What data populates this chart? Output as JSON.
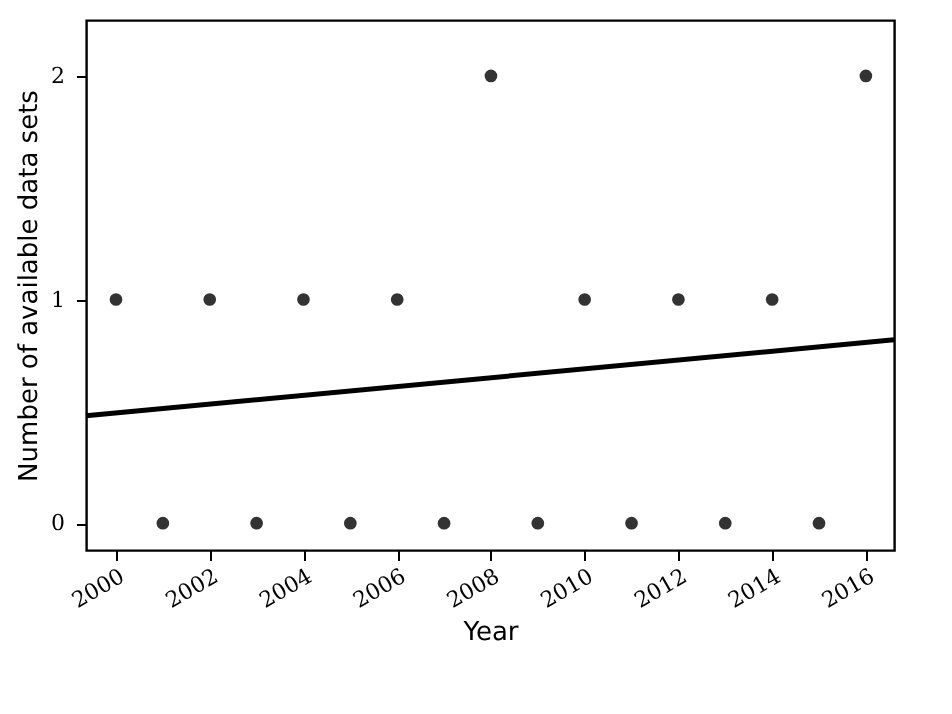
{
  "chart_data": {
    "type": "scatter",
    "xlabel": "Year",
    "ylabel": "Number of available data sets",
    "x": [
      2000,
      2001,
      2002,
      2003,
      2004,
      2005,
      2006,
      2007,
      2008,
      2009,
      2010,
      2011,
      2012,
      2013,
      2014,
      2015,
      2016
    ],
    "series": [
      {
        "color": "#333333",
        "marker": "circle",
        "values": [
          1,
          0,
          1,
          0,
          1,
          0,
          1,
          0,
          2,
          0,
          1,
          0,
          1,
          0,
          1,
          0,
          2
        ]
      },
      {
        "type": "line",
        "color": "#000000",
        "x": [
          1999.36,
          2016.6
        ],
        "values": [
          0.48,
          0.82
        ]
      }
    ],
    "xlim": [
      1999.36,
      2016.6
    ],
    "ylim": [
      -0.12,
      2.25
    ],
    "xticks": [
      2000,
      2002,
      2004,
      2006,
      2008,
      2010,
      2012,
      2014,
      2016
    ],
    "yticks": [
      0,
      1,
      2
    ],
    "grid": false,
    "line_style": "solid"
  }
}
